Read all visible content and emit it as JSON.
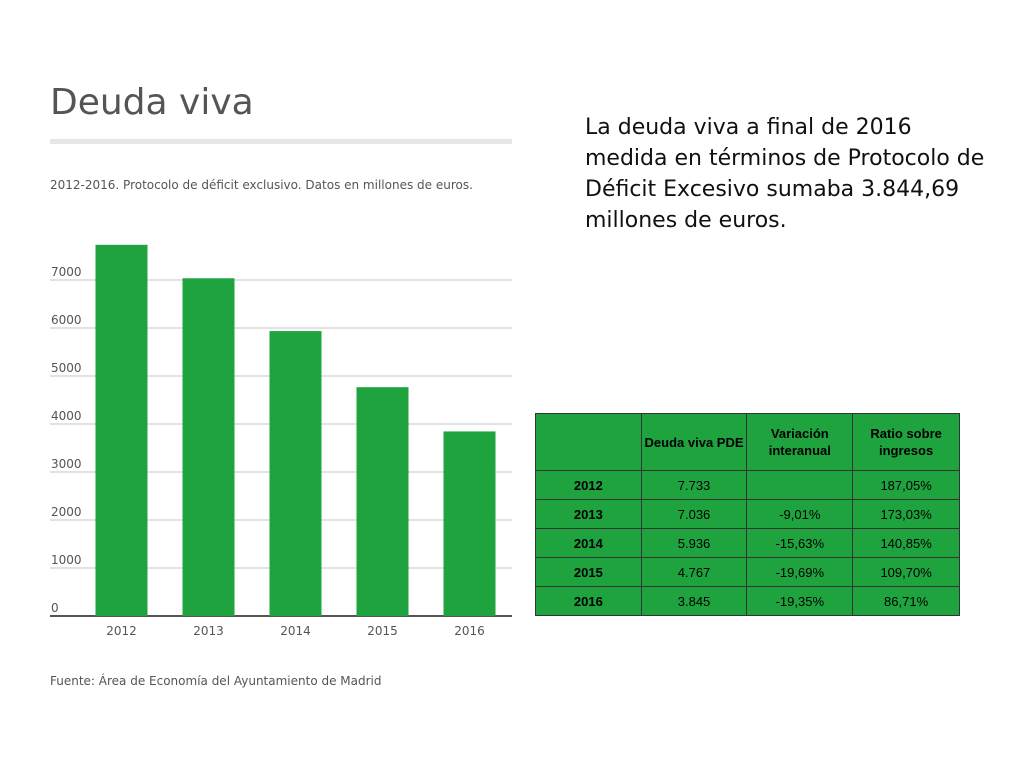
{
  "chart_data": {
    "type": "bar",
    "title": "Deuda viva",
    "subtitle": "2012-2016. Protocolo de déficit exclusivo. Datos en millones de euros.",
    "source": "Fuente: Área de Economía del Ayuntamiento de Madrid",
    "categories": [
      "2012",
      "2013",
      "2014",
      "2015",
      "2016"
    ],
    "values": [
      7733,
      7036,
      5936,
      4767,
      3845
    ],
    "yticks": [
      "0",
      "1000",
      "2000",
      "3000",
      "4000",
      "5000",
      "6000",
      "7000"
    ],
    "ylim": [
      0,
      8000
    ],
    "grid": true,
    "bar_color": "#1ea33f"
  },
  "description": "La deuda viva a final de 2016 medida en términos de Protocolo de Déficit Excesivo sumaba 3.844,69 millones de euros.",
  "table": {
    "headers": [
      "",
      "Deuda viva PDE",
      "Variación interanual",
      "Ratio sobre ingresos"
    ],
    "rows": [
      [
        "2012",
        "7.733",
        "",
        "187,05%"
      ],
      [
        "2013",
        "7.036",
        "-9,01%",
        "173,03%"
      ],
      [
        "2014",
        "5.936",
        "-15,63%",
        "140,85%"
      ],
      [
        "2015",
        "4.767",
        "-19,69%",
        "109,70%"
      ],
      [
        "2016",
        "3.845",
        "-19,35%",
        "86,71%"
      ]
    ]
  }
}
